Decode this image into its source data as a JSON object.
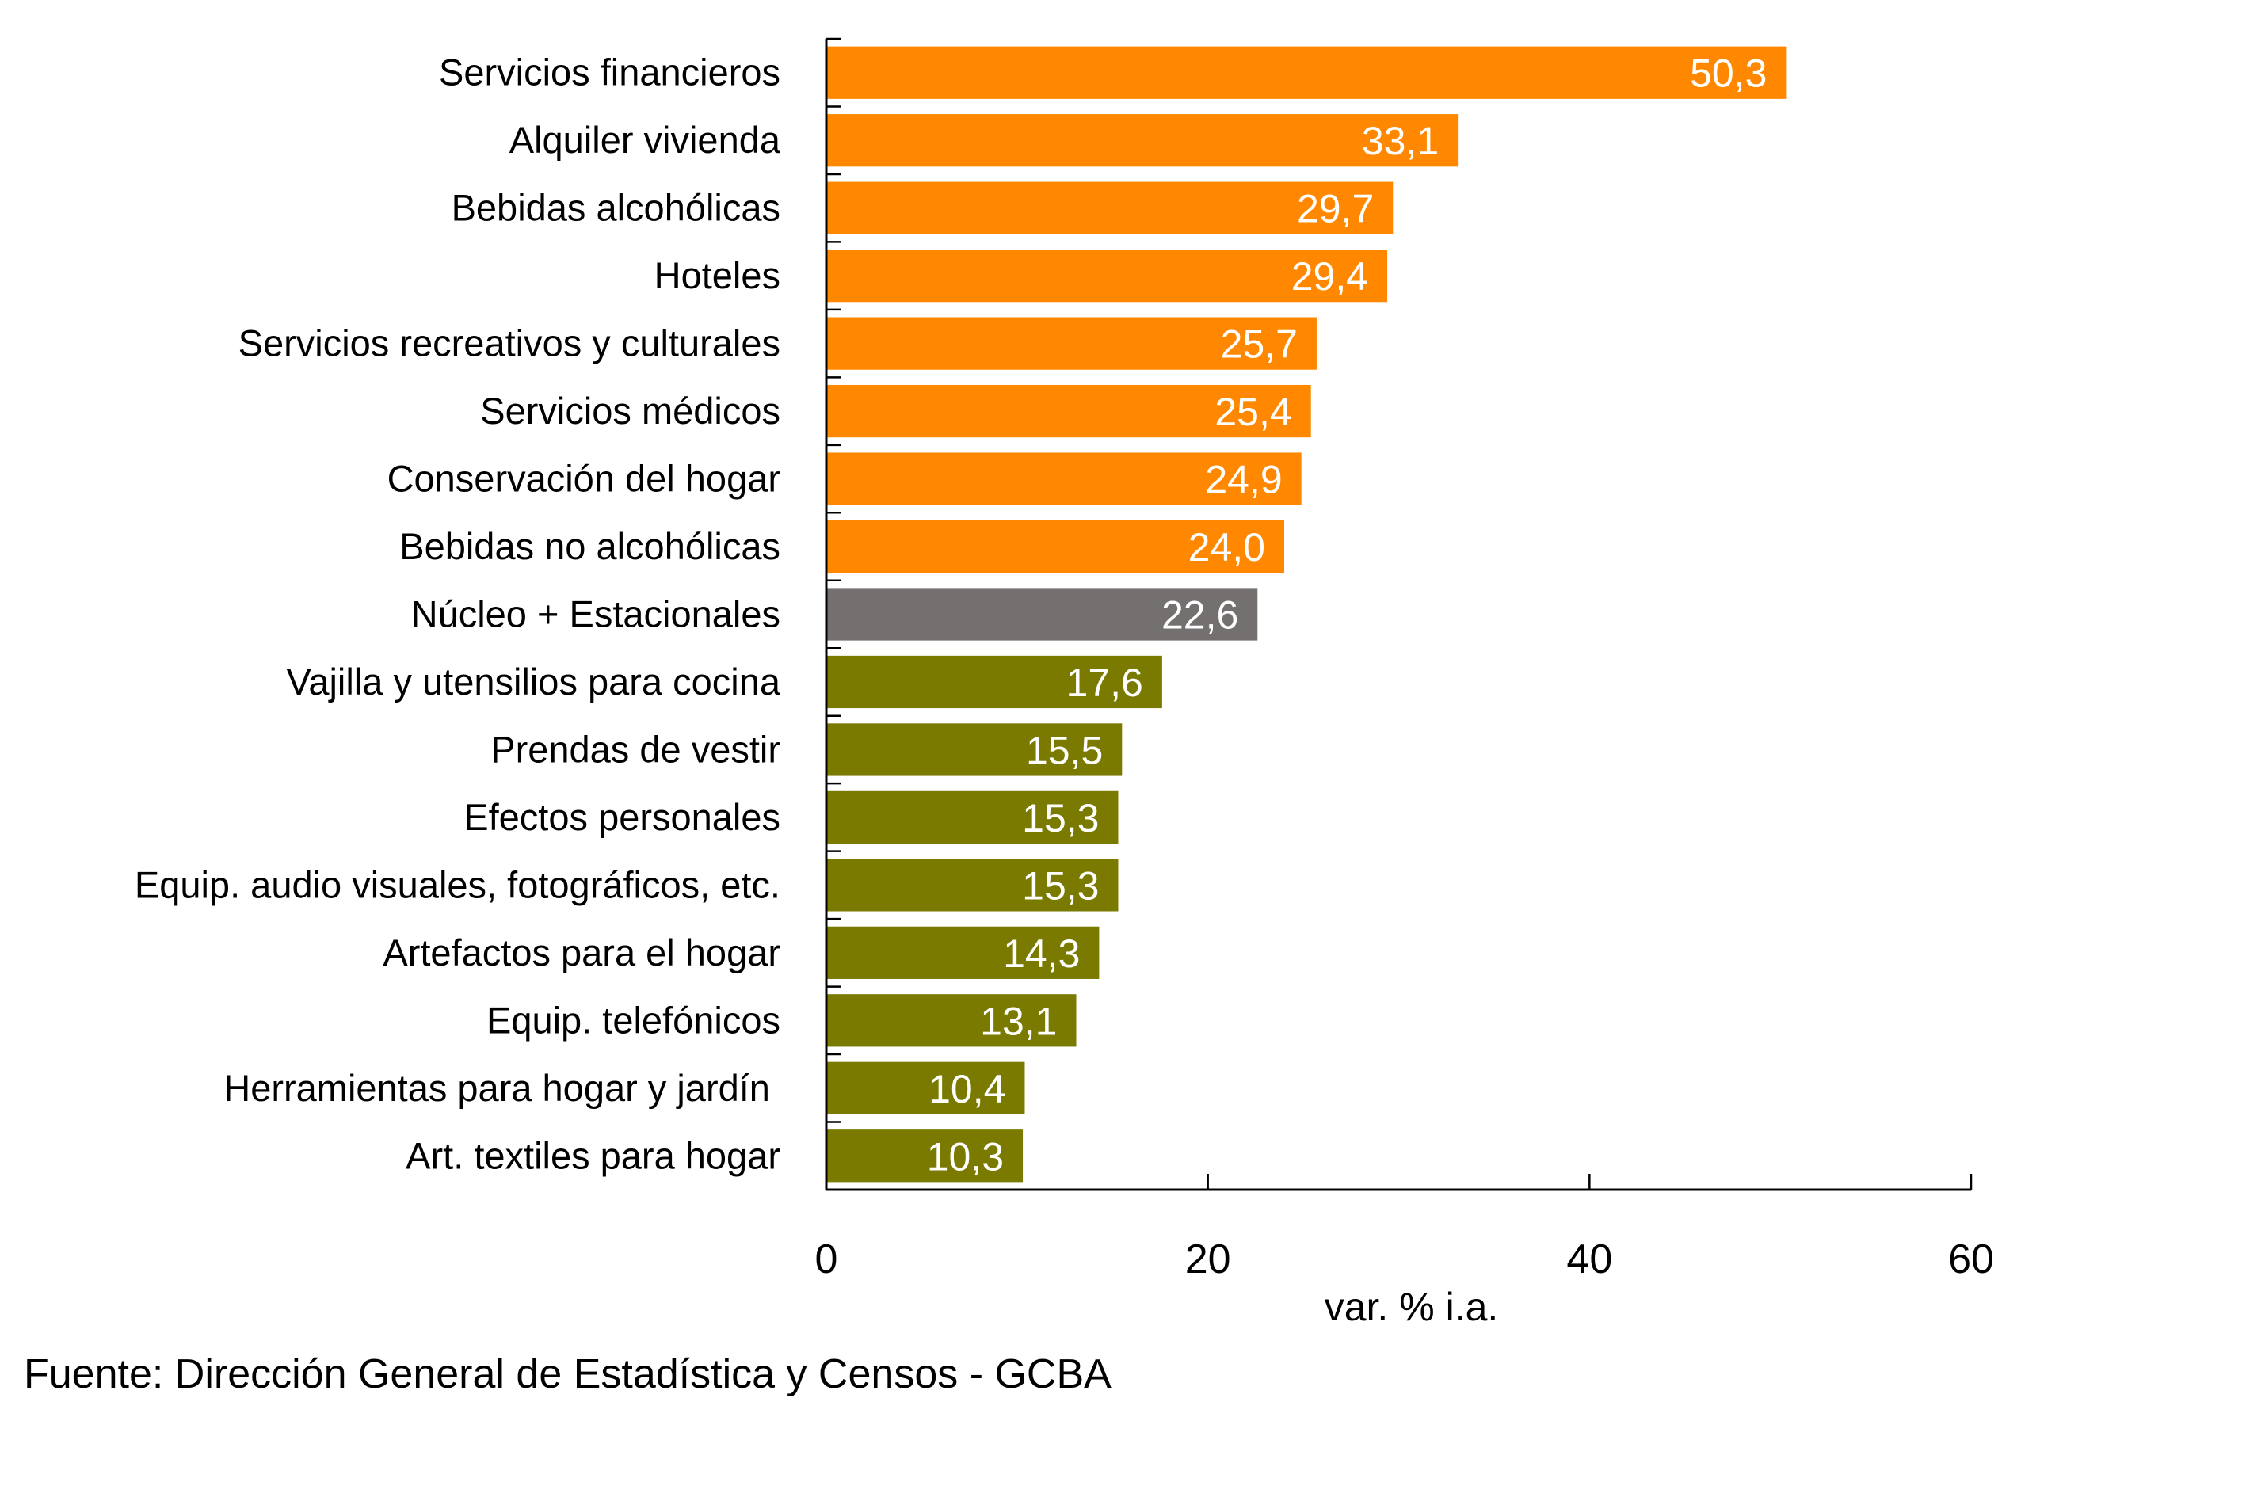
{
  "chart_data": {
    "type": "bar",
    "orientation": "horizontal",
    "title": "",
    "xlabel": "var. % i.a.",
    "ylabel": "",
    "xlim": [
      0,
      60
    ],
    "x_ticks": [
      0,
      20,
      40,
      60
    ],
    "x_tick_labels": [
      "0",
      "20",
      "40",
      "60"
    ],
    "grid": false,
    "legend": null,
    "categories": [
      "Servicios financieros",
      "Alquiler vivienda",
      "Bebidas alcohólicas",
      "Hoteles",
      "Servicios recreativos y culturales",
      "Servicios médicos",
      "Conservación del hogar",
      "Bebidas no alcohólicas",
      "Núcleo + Estacionales",
      "Vajilla y utensilios para cocina",
      "Prendas de vestir",
      "Efectos personales",
      "Equip. audio visuales, fotográficos, etc.",
      "Artefactos para el hogar",
      "Equip. telefónicos",
      "Herramientas para hogar y jardín ",
      "Art. textiles para hogar"
    ],
    "values": [
      50.3,
      33.1,
      29.7,
      29.4,
      25.7,
      25.4,
      24.9,
      24.0,
      22.6,
      17.6,
      15.5,
      15.3,
      15.3,
      14.3,
      13.1,
      10.4,
      10.3
    ],
    "value_labels": [
      "50,3",
      "33,1",
      "29,7",
      "29,4",
      "25,7",
      "25,4",
      "24,9",
      "24,0",
      "22,6",
      "17,6",
      "15,5",
      "15,3",
      "15,3",
      "14,3",
      "13,1",
      "10,4",
      "10,3"
    ],
    "groups": [
      "above",
      "above",
      "above",
      "above",
      "above",
      "above",
      "above",
      "above",
      "reference",
      "below",
      "below",
      "below",
      "below",
      "below",
      "below",
      "below",
      "below"
    ],
    "group_colors": {
      "above": "#FF8800",
      "reference": "#747070",
      "below": "#7A7A00"
    },
    "data_label_color": "#FFFFFF"
  },
  "source": "Fuente: Dirección General de Estadística y Censos - GCBA"
}
